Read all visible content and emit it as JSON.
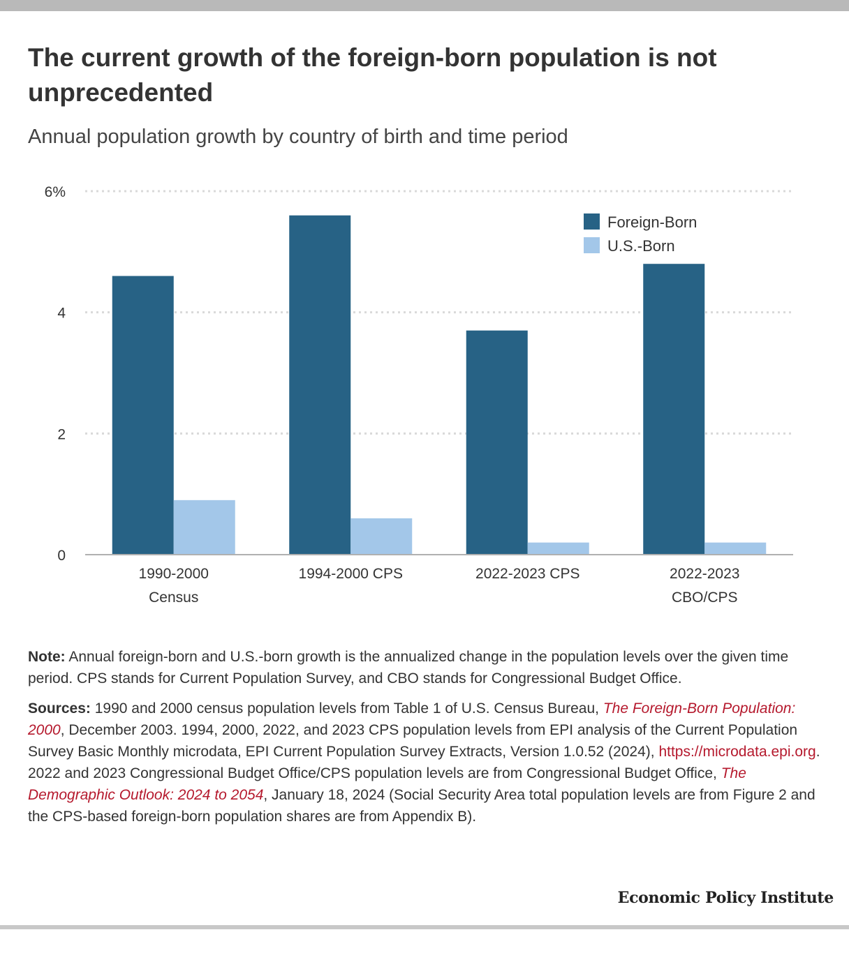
{
  "title": "The current growth of the foreign-born population is not unprecedented",
  "subtitle": "Annual population growth by country of birth and time period",
  "colors": {
    "foreign_born": "#276285",
    "us_born": "#a3c7e9",
    "grid": "#d9d9d9",
    "axis": "#b0b0b0",
    "link_red": "#b5192d"
  },
  "chart_data": {
    "type": "bar",
    "categories": [
      [
        "1990-2000",
        "Census"
      ],
      [
        "1994-2000 CPS"
      ],
      [
        "2022-2023 CPS"
      ],
      [
        "2022-2023",
        "CBO/CPS"
      ]
    ],
    "series": [
      {
        "name": "Foreign-Born",
        "values": [
          4.6,
          5.6,
          3.7,
          4.8
        ],
        "color": "#276285"
      },
      {
        "name": "U.S.-Born",
        "values": [
          0.9,
          0.6,
          0.2,
          0.2
        ],
        "color": "#a3c7e9"
      }
    ],
    "ylim": [
      0,
      6
    ],
    "yticks": [
      0,
      2,
      4,
      6
    ],
    "ytick_labels": [
      "0",
      "2",
      "4",
      "6%"
    ],
    "grid": true,
    "legend_position": "top-right"
  },
  "note": {
    "label": "Note:",
    "text": "Annual foreign-born and U.S.-born growth is the annualized change in the population levels over the given time period. CPS stands for Current Population Survey, and CBO stands for Congressional Budget Office."
  },
  "sources": {
    "label": "Sources:",
    "part1": "1990 and 2000 census population levels from Table 1 of U.S. Census Bureau,",
    "link1": "The Foreign-Born Population: 2000",
    "part2": ", December 2003. 1994, 2000, 2022, and 2023 CPS population levels from EPI analysis of the Current Population Survey Basic Monthly microdata, EPI Current Population Survey Extracts, Version 1.0.52 (2024),",
    "link2": "https://microdata.epi.org",
    "part3": ". 2022 and 2023 Congressional Budget Office/CPS population levels are from Congressional Budget Office,",
    "link3": "The Demographic Outlook: 2024 to 2054",
    "part4": ", January 18, 2024 (Social Security Area total population levels are from Figure 2 and the CPS-based foreign-born population shares are from Appendix B)."
  },
  "brand": "Economic Policy Institute"
}
